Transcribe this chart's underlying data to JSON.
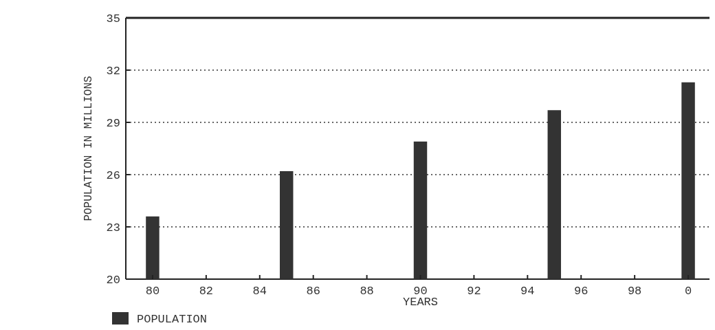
{
  "chart_data": {
    "type": "bar",
    "xlabel": "YEARS",
    "ylabel": "POPULATION IN MILLIONS",
    "categories": [
      "80",
      null,
      "82",
      null,
      "84",
      null,
      "86",
      null,
      "88",
      null,
      "90",
      null,
      "92",
      null,
      "94",
      null,
      "96",
      null,
      "98",
      null,
      "0"
    ],
    "series": [
      {
        "name": "POPULATION",
        "color": "#333333",
        "values": [
          23.6,
          null,
          null,
          null,
          null,
          26.2,
          null,
          null,
          null,
          null,
          27.9,
          null,
          null,
          null,
          null,
          29.7,
          null,
          null,
          null,
          null,
          31.3
        ]
      }
    ],
    "ylim": [
      20,
      35
    ],
    "yticks": [
      20,
      23,
      26,
      29,
      32,
      35
    ],
    "grid": "y",
    "legend": "bottom left"
  }
}
